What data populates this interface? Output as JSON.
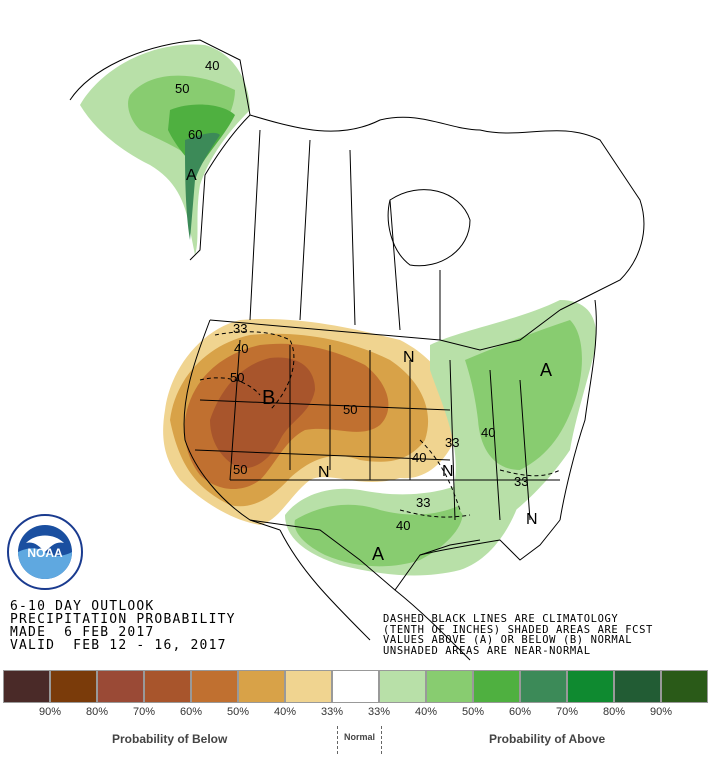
{
  "header": {
    "line1": "6-10 DAY OUTLOOK",
    "line2": "PRECIPITATION PROBABILITY",
    "line3": "MADE  6 FEB 2017",
    "line4": "VALID  FEB 12 - 16, 2017"
  },
  "note": {
    "line1": "DASHED BLACK LINES ARE CLIMATOLOGY",
    "line2": "(TENTH OF INCHES) SHADED AREAS ARE FCST",
    "line3": "VALUES ABOVE (A) OR BELOW (B) NORMAL",
    "line4": "UNSHADED AREAS ARE NEAR-NORMAL"
  },
  "logo": {
    "name": "noaa-logo",
    "text": "NOAA",
    "ring_text": "NATIONAL OCEANIC AND ATMOSPHERIC ADMINISTRATION · U.S. DEPARTMENT OF COMMERCE"
  },
  "map_labels": {
    "alaska_40": "40",
    "alaska_50": "50",
    "alaska_60": "60",
    "alaska_A": "A",
    "west_33": "33",
    "west_40": "40",
    "west_50": "50",
    "west_B": "B",
    "west_50b": "50",
    "sw_50": "50",
    "plains_33": "33",
    "plains_40": "40",
    "central_N": "N",
    "midwest_N": "N",
    "lakes_N": "N",
    "east_A": "A",
    "east_40": "40",
    "east_33": "33",
    "south_33": "33",
    "south_40": "40",
    "south_A": "A",
    "se_N": "N"
  },
  "legend": {
    "colors": [
      "#4a2a28",
      "#7a3b0a",
      "#9a4a36",
      "#a8552c",
      "#c07030",
      "#d8a248",
      "#f0d490",
      "#ffffff",
      "#b8e0a8",
      "#88cc70",
      "#4fb040",
      "#3c8a58",
      "#0f8a30",
      "#225c34",
      "#2a5a18"
    ],
    "ticks": [
      "90%",
      "80%",
      "70%",
      "60%",
      "50%",
      "40%",
      "33%",
      "33%",
      "40%",
      "50%",
      "60%",
      "70%",
      "80%",
      "90%"
    ],
    "below_label": "Probability of Below",
    "normal_label": "Normal",
    "above_label": "Probability of Above"
  }
}
